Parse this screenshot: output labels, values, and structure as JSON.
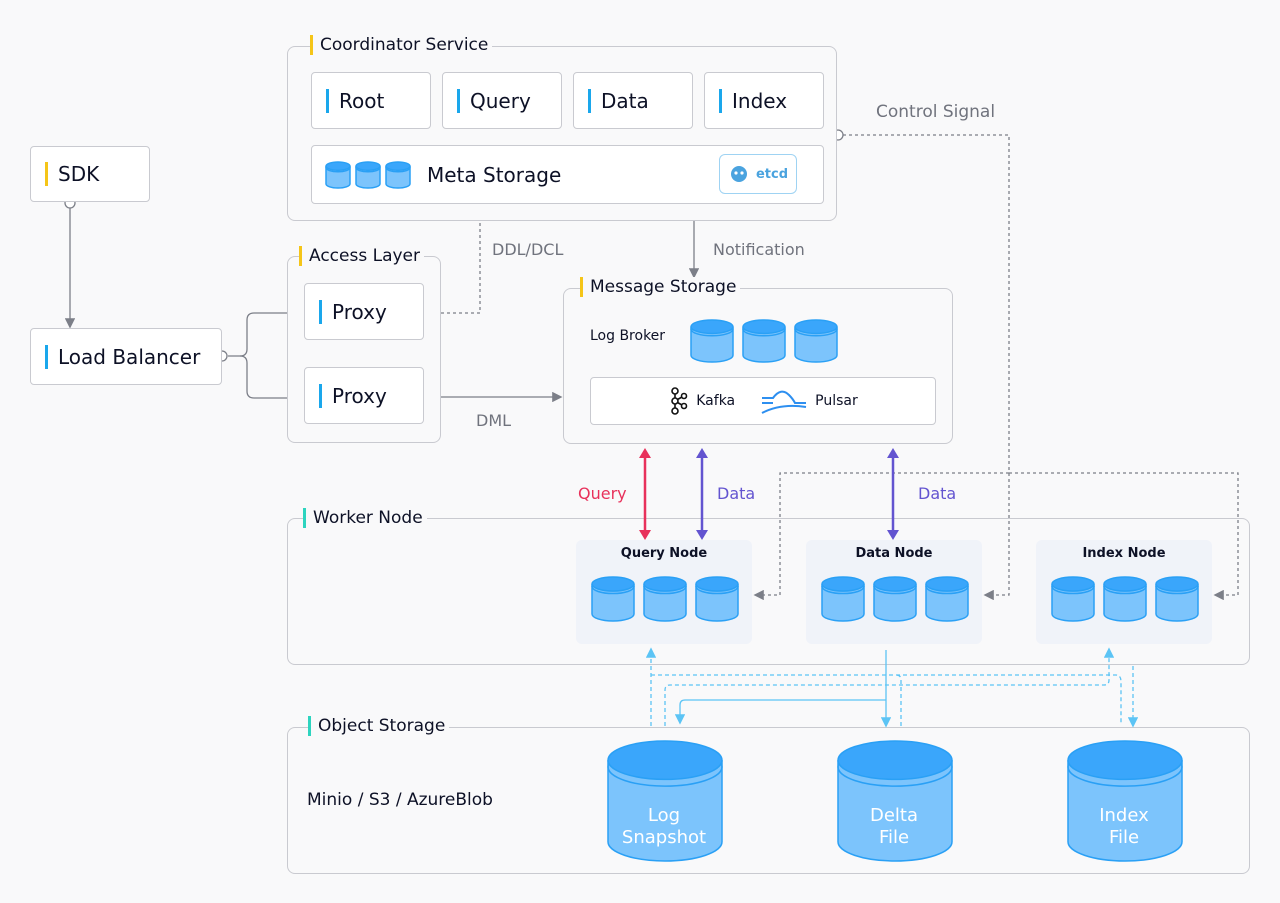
{
  "coordinator": {
    "title": "Coordinator Service",
    "items": [
      "Root",
      "Query",
      "Data",
      "Index"
    ],
    "meta_storage": "Meta Storage",
    "etcd": "etcd"
  },
  "sdk": "SDK",
  "load_balancer": "Load Balancer",
  "access_layer": {
    "title": "Access Layer",
    "proxies": [
      "Proxy",
      "Proxy"
    ]
  },
  "message_storage": {
    "title": "Message Storage",
    "log_broker": "Log Broker",
    "kafka": "Kafka",
    "pulsar": "Pulsar"
  },
  "worker_node": {
    "title": "Worker Node",
    "nodes": [
      "Query Node",
      "Data Node",
      "Index Node"
    ]
  },
  "object_storage": {
    "title": "Object Storage",
    "backends": "Minio / S3 / AzureBlob",
    "stores": [
      [
        "Log",
        "Snapshot"
      ],
      [
        "Delta",
        "File"
      ],
      [
        "Index",
        "File"
      ]
    ]
  },
  "edges": {
    "control_signal": "Control Signal",
    "ddl_dcl": "DDL/DCL",
    "notification": "Notification",
    "dml": "DML",
    "query": "Query",
    "data_1": "Data",
    "data_2": "Data"
  },
  "colors": {
    "yellow": "#f5c518",
    "blue": "#1aa7ec",
    "teal": "#2dd4bf",
    "query": "#e8315b",
    "data": "#6354d0",
    "cylinder": "#3aa6fb"
  }
}
